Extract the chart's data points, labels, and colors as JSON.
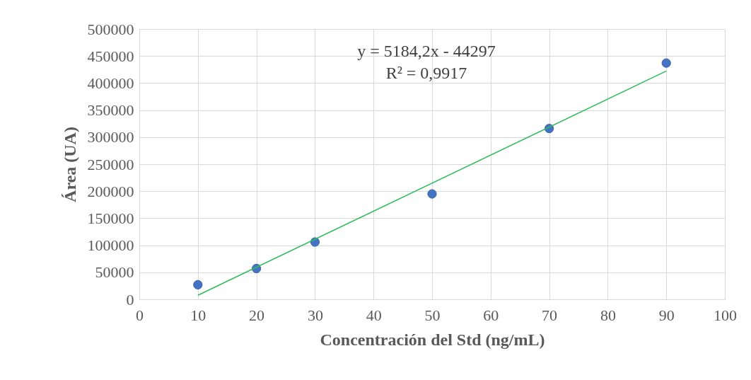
{
  "chart_data": {
    "type": "scatter",
    "xlabel": "Concentración del Std (ng/mL)",
    "ylabel": "Área (UA)",
    "xlim": [
      0,
      100
    ],
    "xticks": [
      0,
      10,
      20,
      30,
      40,
      50,
      60,
      70,
      80,
      90,
      100
    ],
    "ylim": [
      0,
      500000
    ],
    "yticks": [
      0,
      50000,
      100000,
      150000,
      200000,
      250000,
      300000,
      350000,
      400000,
      450000,
      500000
    ],
    "grid": true,
    "annotations": [
      "y = 5184,2x - 44297",
      "R² = 0,9917"
    ],
    "series": [
      {
        "marker": "circle",
        "color": "#4472c4",
        "x": [
          10,
          20,
          30,
          50,
          70,
          90
        ],
        "values": [
          27000,
          57000,
          106000,
          195000,
          316000,
          437000
        ]
      },
      {
        "type": "line",
        "marker": "none",
        "color": "#2ebd59",
        "x": [
          10,
          90
        ],
        "values": [
          7500,
          422300
        ]
      }
    ]
  }
}
